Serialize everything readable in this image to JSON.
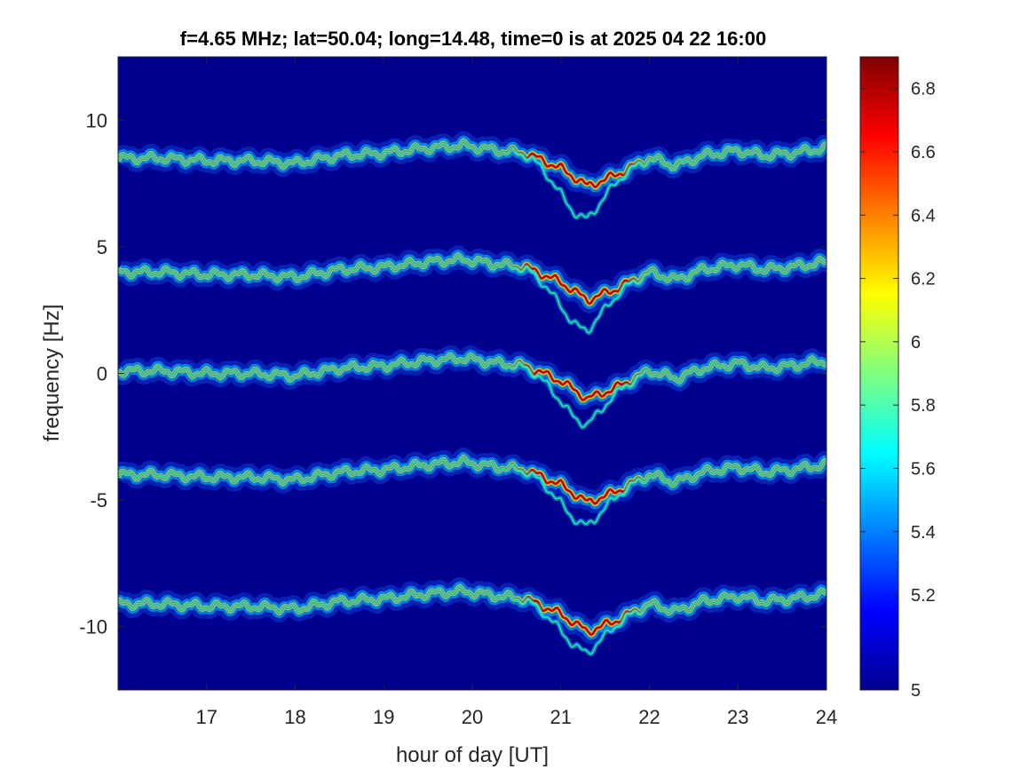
{
  "chart_data": {
    "type": "heatmap",
    "title": "f=4.65 MHz;  lat=50.04; long=14.48, time=0 is at 2025 04 22 16:00",
    "xlabel": "hour of day [UT]",
    "ylabel": "frequency [Hz]",
    "xlim": [
      16,
      24
    ],
    "ylim": [
      -12.5,
      12.5
    ],
    "x_ticks": [
      17,
      18,
      19,
      20,
      21,
      22,
      23,
      24
    ],
    "x_tick_labels": [
      "17",
      "18",
      "19",
      "20",
      "21",
      "22",
      "23",
      "24"
    ],
    "y_ticks": [
      10,
      5,
      0,
      -5,
      -10
    ],
    "y_tick_labels": [
      "10",
      "5",
      "0",
      "-5",
      "-10"
    ],
    "colorbar": {
      "colormap": "jet",
      "clim": [
        4.9,
        6.9
      ],
      "ticks": [
        4.9,
        5.2,
        5.4,
        5.6,
        5.8,
        6.0,
        6.2,
        6.4,
        6.6,
        6.8
      ],
      "tick_labels": [
        "5",
        "5.2",
        "5.4",
        "5.6",
        "5.8",
        "6",
        "6.2",
        "6.4",
        "6.6",
        "6.8"
      ]
    },
    "background_value": 4.9,
    "background_color": "#00008f",
    "traces": [
      {
        "name": "",
        "base_frequency": 8.5,
        "dip_depth": 1.4
      },
      {
        "name": "",
        "base_frequency": 4.0,
        "dip_depth": 1.3
      },
      {
        "name": "",
        "base_frequency": 0.1,
        "dip_depth": 1.1
      },
      {
        "name": "",
        "base_frequency": -4.0,
        "dip_depth": 1.0
      },
      {
        "name": "",
        "base_frequency": -9.1,
        "dip_depth": 0.9
      }
    ],
    "trace_shape": {
      "x": [
        16.0,
        16.5,
        17.0,
        17.5,
        18.0,
        18.5,
        19.0,
        19.5,
        19.9,
        20.3,
        20.6,
        21.0,
        21.3,
        21.6,
        22.0,
        22.3,
        22.6,
        23.0,
        23.3,
        23.6,
        24.0
      ],
      "offset": [
        0.0,
        0.0,
        -0.1,
        -0.1,
        -0.2,
        0.1,
        0.2,
        0.4,
        0.5,
        0.3,
        0.2,
        -0.4,
        -1.1,
        -0.7,
        0.0,
        -0.3,
        0.1,
        0.3,
        0.1,
        0.2,
        0.4
      ]
    }
  }
}
